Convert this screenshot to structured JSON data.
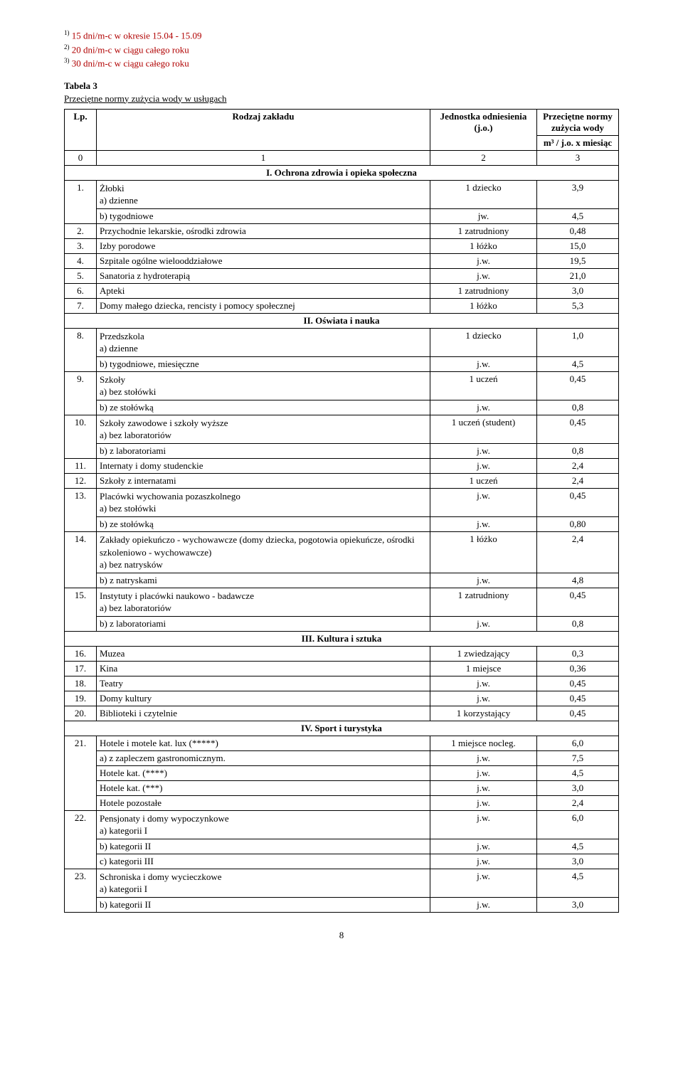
{
  "footnotes": {
    "f1_sup": "1)",
    "f1_text": "15 dni/m-c w okresie 15.04 - 15.09",
    "f2_sup": "2)",
    "f2_text": "20 dni/m-c w ciągu całego roku",
    "f3_sup": "3)",
    "f3_text": "30 dni/m-c w ciągu całego roku"
  },
  "table3": {
    "title": "Tabela 3",
    "subtitle": "Przeciętne normy zużycia wody w usługach",
    "head": {
      "lp": "Lp.",
      "rodzaj": "Rodzaj zakładu",
      "jednostka": "Jednostka odniesienia (j.o.)",
      "normy": "Przeciętne normy zużycia wody",
      "m3": "m³ / j.o. x miesiąc",
      "c0": "0",
      "c1": "1",
      "c2": "2",
      "c3": "3"
    },
    "sections": {
      "s1": "I. Ochrona zdrowia i opieka społeczna",
      "s2": "II. Oświata i nauka",
      "s3": "III. Kultura i sztuka",
      "s4": "IV. Sport i turystyka"
    },
    "rows": {
      "r1": {
        "lp": "1.",
        "l0": "Żłobki",
        "la": "a) dzienne",
        "ua": "1 dziecko",
        "va": "3,9",
        "lb": "b) tygodniowe",
        "ub": "jw.",
        "vb": "4,5"
      },
      "r2": {
        "lp": "2.",
        "l": "Przychodnie lekarskie, ośrodki zdrowia",
        "u": "1 zatrudniony",
        "v": "0,48"
      },
      "r3": {
        "lp": "3.",
        "l": "Izby porodowe",
        "u": "1 łóżko",
        "v": "15,0"
      },
      "r4": {
        "lp": "4.",
        "l": "Szpitale ogólne wielooddziałowe",
        "u": "j.w.",
        "v": "19,5"
      },
      "r5": {
        "lp": "5.",
        "l": "Sanatoria z hydroterapią",
        "u": "j.w.",
        "v": "21,0"
      },
      "r6": {
        "lp": "6.",
        "l": "Apteki",
        "u": "1 zatrudniony",
        "v": "3,0"
      },
      "r7": {
        "lp": "7.",
        "l": "Domy małego dziecka, rencisty i pomocy społecznej",
        "u": "1 łóżko",
        "v": "5,3"
      },
      "r8": {
        "lp": "8.",
        "l0": "Przedszkola",
        "la": "a) dzienne",
        "ua": "1 dziecko",
        "va": "1,0",
        "lb": "b) tygodniowe, miesięczne",
        "ub": "j.w.",
        "vb": "4,5"
      },
      "r9": {
        "lp": "9.",
        "l0": "Szkoły",
        "la": "a) bez stołówki",
        "ua": "1 uczeń",
        "va": "0,45",
        "lb": "b) ze stołówką",
        "ub": "j.w.",
        "vb": "0,8"
      },
      "r10": {
        "lp": "10.",
        "l0": "Szkoły zawodowe i szkoły wyższe",
        "la": "a) bez laboratoriów",
        "ua": "1 uczeń (student)",
        "va": "0,45",
        "lb": "b) z laboratoriami",
        "ub": "j.w.",
        "vb": "0,8"
      },
      "r11": {
        "lp": "11.",
        "l": "Internaty i domy studenckie",
        "u": "j.w.",
        "v": "2,4"
      },
      "r12": {
        "lp": "12.",
        "l": "Szkoły z internatami",
        "u": "1 uczeń",
        "v": "2,4"
      },
      "r13": {
        "lp": "13.",
        "l0": "Placówki wychowania pozaszkolnego",
        "la": "a) bez stołówki",
        "ua": "j.w.",
        "va": "0,45",
        "lb": "b) ze stołówką",
        "ub": "j.w.",
        "vb": "0,80"
      },
      "r14": {
        "lp": "14.",
        "l0": "Zakłady opiekuńczo - wychowawcze (domy dziecka, pogotowia opiekuńcze, ośrodki szkoleniowo - wychowawcze)",
        "la": "a) bez natrysków",
        "ua": "1 łóżko",
        "va": "2,4",
        "lb": "b) z natryskami",
        "ub": "j.w.",
        "vb": "4,8"
      },
      "r15": {
        "lp": "15.",
        "l0": "Instytuty i placówki naukowo - badawcze",
        "la": "a) bez laboratoriów",
        "ua": "1 zatrudniony",
        "va": "0,45",
        "lb": "b) z laboratoriami",
        "ub": "j.w.",
        "vb": "0,8"
      },
      "r16": {
        "lp": "16.",
        "l": "Muzea",
        "u": "1 zwiedzający",
        "v": "0,3"
      },
      "r17": {
        "lp": "17.",
        "l": "Kina",
        "u": "1 miejsce",
        "v": "0,36"
      },
      "r18": {
        "lp": "18.",
        "l": "Teatry",
        "u": "j.w.",
        "v": "0,45"
      },
      "r19": {
        "lp": "19.",
        "l": "Domy kultury",
        "u": "j.w.",
        "v": "0,45"
      },
      "r20": {
        "lp": "20.",
        "l": "Biblioteki i czytelnie",
        "u": "1 korzystający",
        "v": "0,45"
      },
      "r21": {
        "lp": "21.",
        "a_l": "Hotele i motele kat. lux (*****)",
        "a_u": "1 miejsce nocleg.",
        "a_v": "6,0",
        "b_l": "a) z zapleczem gastronomicznym.",
        "b_u": "j.w.",
        "b_v": "7,5",
        "c_l": "Hotele kat. (****)",
        "c_u": "j.w.",
        "c_v": "4,5",
        "d_l": "Hotele kat. (***)",
        "d_u": "j.w.",
        "d_v": "3,0",
        "e_l": "Hotele pozostałe",
        "e_u": "j.w.",
        "e_v": "2,4"
      },
      "r22": {
        "lp": "22.",
        "l0": "Pensjonaty i domy wypoczynkowe",
        "a_l": "a) kategorii I",
        "a_u": "j.w.",
        "a_v": "6,0",
        "b_l": "b) kategorii II",
        "b_u": "j.w.",
        "b_v": "4,5",
        "c_l": "c) kategorii III",
        "c_u": "j.w.",
        "c_v": "3,0"
      },
      "r23": {
        "lp": "23.",
        "l0": "Schroniska i domy wycieczkowe",
        "a_l": "a) kategorii I",
        "a_u": "j.w.",
        "a_v": "4,5",
        "b_l": "b) kategorii II",
        "b_u": "j.w.",
        "b_v": "3,0"
      }
    }
  },
  "pagenum": "8"
}
